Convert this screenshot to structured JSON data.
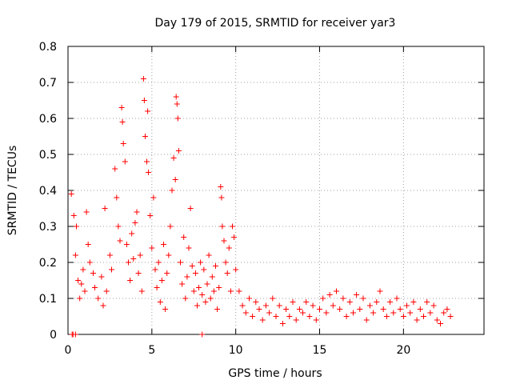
{
  "chart_data": {
    "type": "scatter",
    "title": "Day 179 of 2015, SRMTID for receiver yar3",
    "xlabel": "GPS time / hours",
    "ylabel": "SRMTID / TECUs",
    "xlim": [
      0,
      24.8
    ],
    "ylim": [
      0,
      0.8
    ],
    "xticks": [
      0,
      5,
      10,
      15,
      20
    ],
    "xtick_labels": [
      "0",
      "5",
      "10",
      "15",
      "20"
    ],
    "yticks": [
      0,
      0.1,
      0.2,
      0.3,
      0.4,
      0.5,
      0.6,
      0.7,
      0.8
    ],
    "ytick_labels": [
      "0",
      "0.1",
      "0.2",
      "0.3",
      "0.4",
      "0.5",
      "0.6",
      "0.7",
      "0.8"
    ],
    "grid": true,
    "color": "#ff0000",
    "marker": "plus",
    "series": [
      {
        "name": "SRMTID",
        "points": [
          [
            0.25,
            0.0
          ],
          [
            0.3,
            0.0
          ],
          [
            0.45,
            0.0
          ],
          [
            8.0,
            0.0
          ],
          [
            0.2,
            0.39
          ],
          [
            0.35,
            0.33
          ],
          [
            0.5,
            0.3
          ],
          [
            0.45,
            0.22
          ],
          [
            0.6,
            0.15
          ],
          [
            0.7,
            0.1
          ],
          [
            0.8,
            0.14
          ],
          [
            0.9,
            0.18
          ],
          [
            1.0,
            0.12
          ],
          [
            1.1,
            0.34
          ],
          [
            1.2,
            0.25
          ],
          [
            1.3,
            0.2
          ],
          [
            1.5,
            0.17
          ],
          [
            1.6,
            0.13
          ],
          [
            1.8,
            0.1
          ],
          [
            2.0,
            0.16
          ],
          [
            2.1,
            0.08
          ],
          [
            2.2,
            0.35
          ],
          [
            2.3,
            0.12
          ],
          [
            2.5,
            0.22
          ],
          [
            2.6,
            0.18
          ],
          [
            2.8,
            0.46
          ],
          [
            2.9,
            0.38
          ],
          [
            3.0,
            0.3
          ],
          [
            3.1,
            0.26
          ],
          [
            3.2,
            0.63
          ],
          [
            3.25,
            0.59
          ],
          [
            3.3,
            0.53
          ],
          [
            3.4,
            0.48
          ],
          [
            3.5,
            0.25
          ],
          [
            3.6,
            0.2
          ],
          [
            3.7,
            0.15
          ],
          [
            3.8,
            0.28
          ],
          [
            3.9,
            0.21
          ],
          [
            4.0,
            0.31
          ],
          [
            4.1,
            0.34
          ],
          [
            4.2,
            0.17
          ],
          [
            4.3,
            0.22
          ],
          [
            4.4,
            0.12
          ],
          [
            4.5,
            0.71
          ],
          [
            4.55,
            0.65
          ],
          [
            4.6,
            0.55
          ],
          [
            4.7,
            0.48
          ],
          [
            4.75,
            0.62
          ],
          [
            4.8,
            0.45
          ],
          [
            4.9,
            0.33
          ],
          [
            5.0,
            0.24
          ],
          [
            5.1,
            0.38
          ],
          [
            5.2,
            0.18
          ],
          [
            5.3,
            0.13
          ],
          [
            5.4,
            0.2
          ],
          [
            5.5,
            0.09
          ],
          [
            5.6,
            0.15
          ],
          [
            5.7,
            0.25
          ],
          [
            5.8,
            0.07
          ],
          [
            5.9,
            0.17
          ],
          [
            6.0,
            0.22
          ],
          [
            6.1,
            0.3
          ],
          [
            6.2,
            0.4
          ],
          [
            6.3,
            0.49
          ],
          [
            6.4,
            0.43
          ],
          [
            6.45,
            0.66
          ],
          [
            6.5,
            0.64
          ],
          [
            6.55,
            0.6
          ],
          [
            6.6,
            0.51
          ],
          [
            6.7,
            0.2
          ],
          [
            6.8,
            0.14
          ],
          [
            6.9,
            0.27
          ],
          [
            7.0,
            0.1
          ],
          [
            7.1,
            0.16
          ],
          [
            7.2,
            0.24
          ],
          [
            7.3,
            0.35
          ],
          [
            7.4,
            0.19
          ],
          [
            7.5,
            0.12
          ],
          [
            7.6,
            0.17
          ],
          [
            7.7,
            0.08
          ],
          [
            7.8,
            0.13
          ],
          [
            7.9,
            0.2
          ],
          [
            8.0,
            0.11
          ],
          [
            8.1,
            0.18
          ],
          [
            8.2,
            0.09
          ],
          [
            8.3,
            0.14
          ],
          [
            8.4,
            0.22
          ],
          [
            8.5,
            0.1
          ],
          [
            8.6,
            0.16
          ],
          [
            8.7,
            0.12
          ],
          [
            8.8,
            0.19
          ],
          [
            8.9,
            0.07
          ],
          [
            9.0,
            0.13
          ],
          [
            9.1,
            0.41
          ],
          [
            9.15,
            0.38
          ],
          [
            9.2,
            0.3
          ],
          [
            9.3,
            0.26
          ],
          [
            9.4,
            0.2
          ],
          [
            9.5,
            0.17
          ],
          [
            9.6,
            0.24
          ],
          [
            9.7,
            0.12
          ],
          [
            9.8,
            0.3
          ],
          [
            9.9,
            0.27
          ],
          [
            10.0,
            0.18
          ],
          [
            10.2,
            0.12
          ],
          [
            10.4,
            0.08
          ],
          [
            10.6,
            0.06
          ],
          [
            10.8,
            0.1
          ],
          [
            11.0,
            0.05
          ],
          [
            11.2,
            0.09
          ],
          [
            11.4,
            0.07
          ],
          [
            11.6,
            0.04
          ],
          [
            11.8,
            0.08
          ],
          [
            12.0,
            0.06
          ],
          [
            12.2,
            0.1
          ],
          [
            12.4,
            0.05
          ],
          [
            12.6,
            0.08
          ],
          [
            12.8,
            0.03
          ],
          [
            13.0,
            0.07
          ],
          [
            13.2,
            0.05
          ],
          [
            13.4,
            0.09
          ],
          [
            13.6,
            0.04
          ],
          [
            13.8,
            0.07
          ],
          [
            14.0,
            0.06
          ],
          [
            14.2,
            0.09
          ],
          [
            14.4,
            0.05
          ],
          [
            14.6,
            0.08
          ],
          [
            14.8,
            0.04
          ],
          [
            15.0,
            0.07
          ],
          [
            15.2,
            0.1
          ],
          [
            15.4,
            0.06
          ],
          [
            15.6,
            0.11
          ],
          [
            15.8,
            0.08
          ],
          [
            16.0,
            0.12
          ],
          [
            16.2,
            0.07
          ],
          [
            16.4,
            0.1
          ],
          [
            16.6,
            0.05
          ],
          [
            16.8,
            0.09
          ],
          [
            17.0,
            0.06
          ],
          [
            17.2,
            0.11
          ],
          [
            17.4,
            0.07
          ],
          [
            17.6,
            0.1
          ],
          [
            17.8,
            0.04
          ],
          [
            18.0,
            0.08
          ],
          [
            18.2,
            0.06
          ],
          [
            18.4,
            0.09
          ],
          [
            18.6,
            0.12
          ],
          [
            18.8,
            0.07
          ],
          [
            19.0,
            0.05
          ],
          [
            19.2,
            0.09
          ],
          [
            19.4,
            0.06
          ],
          [
            19.6,
            0.1
          ],
          [
            19.8,
            0.07
          ],
          [
            20.0,
            0.05
          ],
          [
            20.2,
            0.08
          ],
          [
            20.4,
            0.06
          ],
          [
            20.6,
            0.09
          ],
          [
            20.8,
            0.04
          ],
          [
            21.0,
            0.07
          ],
          [
            21.2,
            0.05
          ],
          [
            21.4,
            0.09
          ],
          [
            21.6,
            0.06
          ],
          [
            21.8,
            0.08
          ],
          [
            22.0,
            0.04
          ],
          [
            22.2,
            0.03
          ],
          [
            22.4,
            0.06
          ],
          [
            22.6,
            0.07
          ],
          [
            22.8,
            0.05
          ]
        ]
      }
    ]
  }
}
